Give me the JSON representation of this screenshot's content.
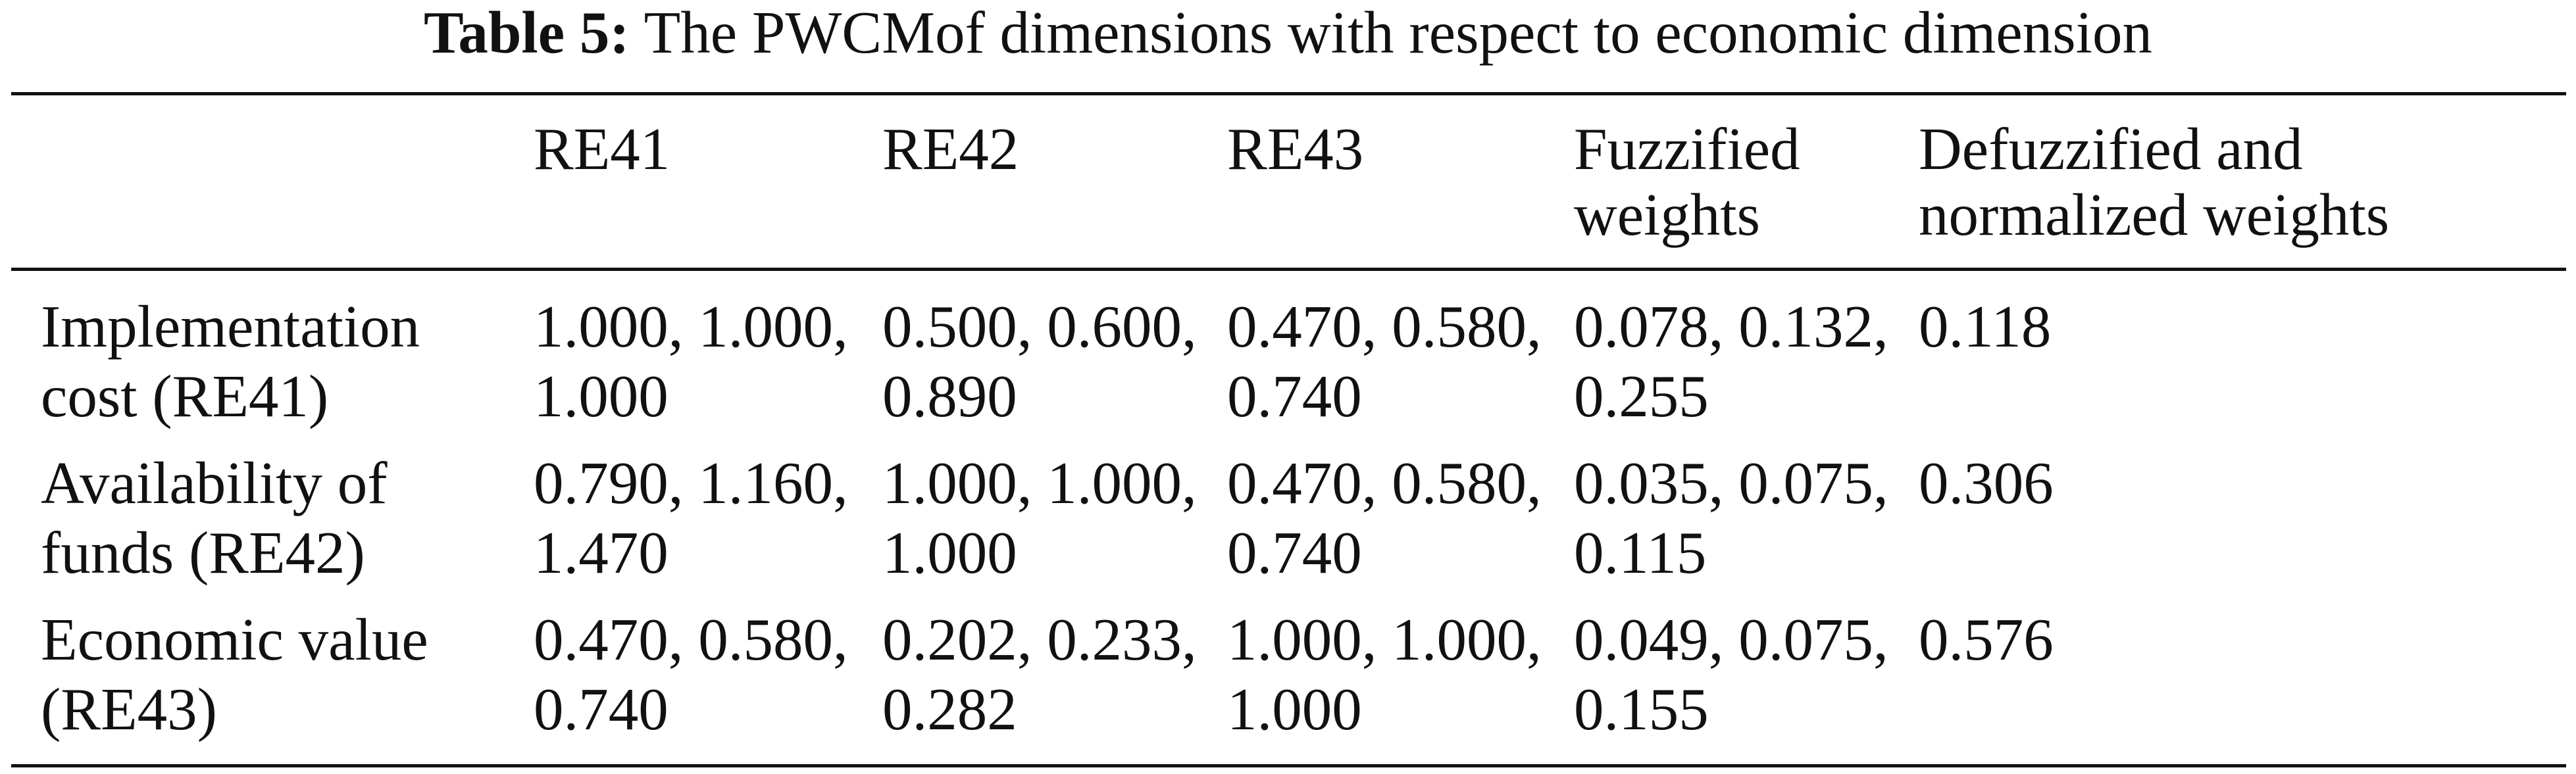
{
  "caption": {
    "label": "Table 5:",
    "text": "The PWCMof dimensions with respect to economic dimension"
  },
  "table": {
    "header": [
      "",
      "RE41",
      "RE42",
      "RE43",
      "Fuzzified weights",
      "Defuzzified and normalized weights"
    ],
    "rows": [
      [
        "Implementation cost (RE41)",
        "1.000, 1.000, 1.000",
        "0.500, 0.600, 0.890",
        "0.470, 0.580, 0.740",
        "0.078, 0.132, 0.255",
        "0.118"
      ],
      [
        "Availability of funds (RE42)",
        "0.790, 1.160, 1.470",
        "1.000, 1.000, 1.000",
        "0.470, 0.580, 0.740",
        "0.035, 0.075, 0.115",
        "0.306"
      ],
      [
        "Economic value (RE43)",
        "0.470, 0.580, 0.740",
        "0.202, 0.233, 0.282",
        "1.000, 1.000, 1.000",
        "0.049, 0.075, 0.155",
        "0.576"
      ]
    ]
  }
}
